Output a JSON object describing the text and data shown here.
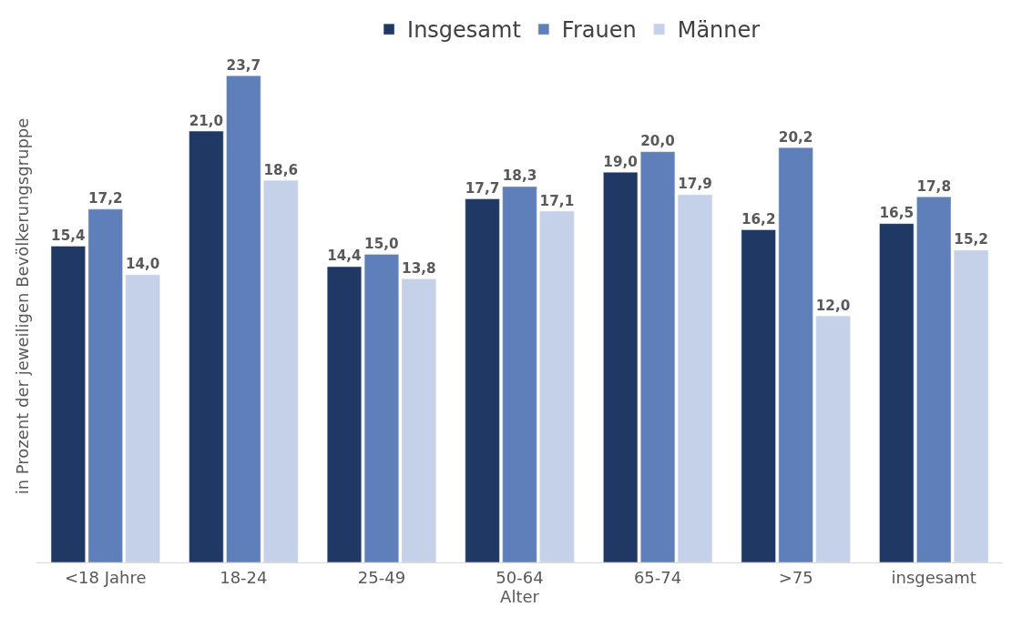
{
  "chart_data": {
    "type": "bar",
    "xlabel": "Alter",
    "ylabel": "in Prozent der jeweiligen Bevölkerungsgruppe",
    "categories": [
      "<18 Jahre",
      "18-24",
      "25-49",
      "50-64",
      "65-74",
      ">75",
      "insgesamt"
    ],
    "series": [
      {
        "name": "Insgesamt",
        "color": "#203864",
        "values": [
          15.4,
          21.0,
          14.4,
          17.7,
          19.0,
          16.2,
          16.5
        ],
        "value_labels": [
          "15,4",
          "21,0",
          "14,4",
          "17,7",
          "19,0",
          "16,2",
          "16,5"
        ]
      },
      {
        "name": "Frauen",
        "color": "#5f7fba",
        "values": [
          17.2,
          23.7,
          15.0,
          18.3,
          20.0,
          20.2,
          17.8
        ],
        "value_labels": [
          "17,2",
          "23,7",
          "15,0",
          "18,3",
          "20,0",
          "20,2",
          "17,8"
        ]
      },
      {
        "name": "Männer",
        "color": "#c5d1e8",
        "values": [
          14.0,
          18.6,
          13.8,
          17.1,
          17.9,
          12.0,
          15.2
        ],
        "value_labels": [
          "14,0",
          "18,6",
          "13,8",
          "17,1",
          "17,9",
          "12,0",
          "15,2"
        ]
      }
    ],
    "legend": "top",
    "tick_labels": "x"
  }
}
